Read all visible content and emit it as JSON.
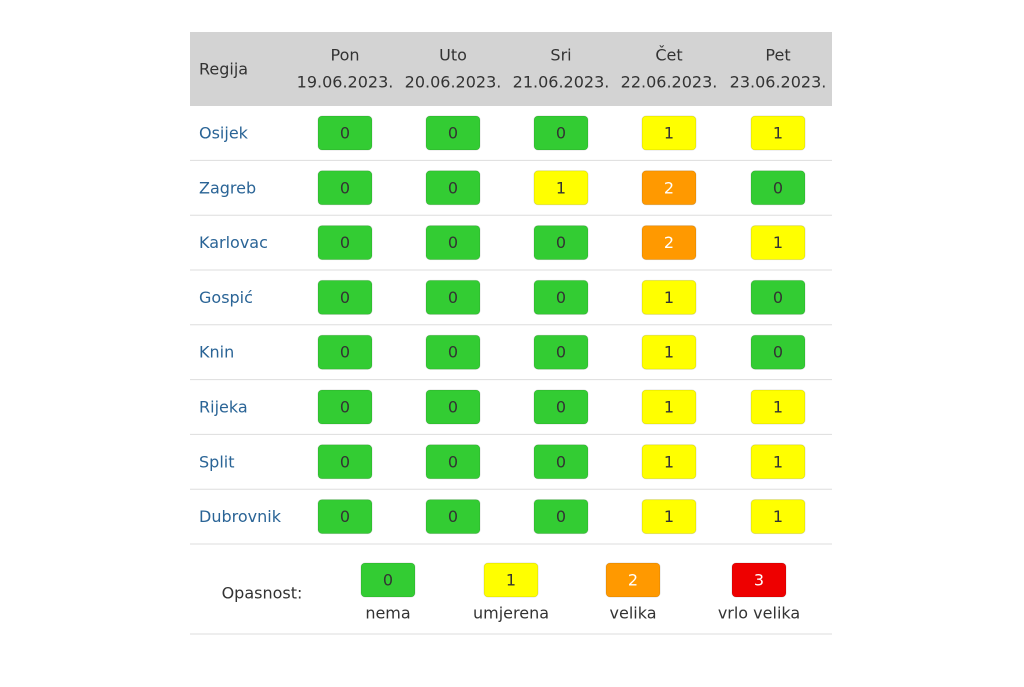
{
  "table": {
    "header": {
      "region": "Regija",
      "days": [
        {
          "name": "Pon",
          "date": "19.06.2023."
        },
        {
          "name": "Uto",
          "date": "20.06.2023."
        },
        {
          "name": "Sri",
          "date": "21.06.2023."
        },
        {
          "name": "Čet",
          "date": "22.06.2023."
        },
        {
          "name": "Pet",
          "date": "23.06.2023."
        }
      ]
    },
    "rows": [
      {
        "region": "Osijek",
        "values": [
          0,
          0,
          0,
          1,
          1
        ]
      },
      {
        "region": "Zagreb",
        "values": [
          0,
          0,
          1,
          2,
          0
        ]
      },
      {
        "region": "Karlovac",
        "values": [
          0,
          0,
          0,
          2,
          1
        ]
      },
      {
        "region": "Gospić",
        "values": [
          0,
          0,
          0,
          1,
          0
        ]
      },
      {
        "region": "Knin",
        "values": [
          0,
          0,
          0,
          1,
          0
        ]
      },
      {
        "region": "Rijeka",
        "values": [
          0,
          0,
          0,
          1,
          1
        ]
      },
      {
        "region": "Split",
        "values": [
          0,
          0,
          0,
          1,
          1
        ]
      },
      {
        "region": "Dubrovnik",
        "values": [
          0,
          0,
          0,
          1,
          1
        ]
      }
    ]
  },
  "legend": {
    "label": "Opasnost:",
    "items": [
      {
        "value": 0,
        "label": "nema",
        "color": "#33cc33",
        "text_color": "#333333"
      },
      {
        "value": 1,
        "label": "umjerena",
        "color": "#ffff00",
        "text_color": "#333333"
      },
      {
        "value": 2,
        "label": "velika",
        "color": "#ff9900",
        "text_color": "#ffffff"
      },
      {
        "value": 3,
        "label": "vrlo velika",
        "color": "#ee0000",
        "text_color": "#ffffff"
      }
    ]
  }
}
